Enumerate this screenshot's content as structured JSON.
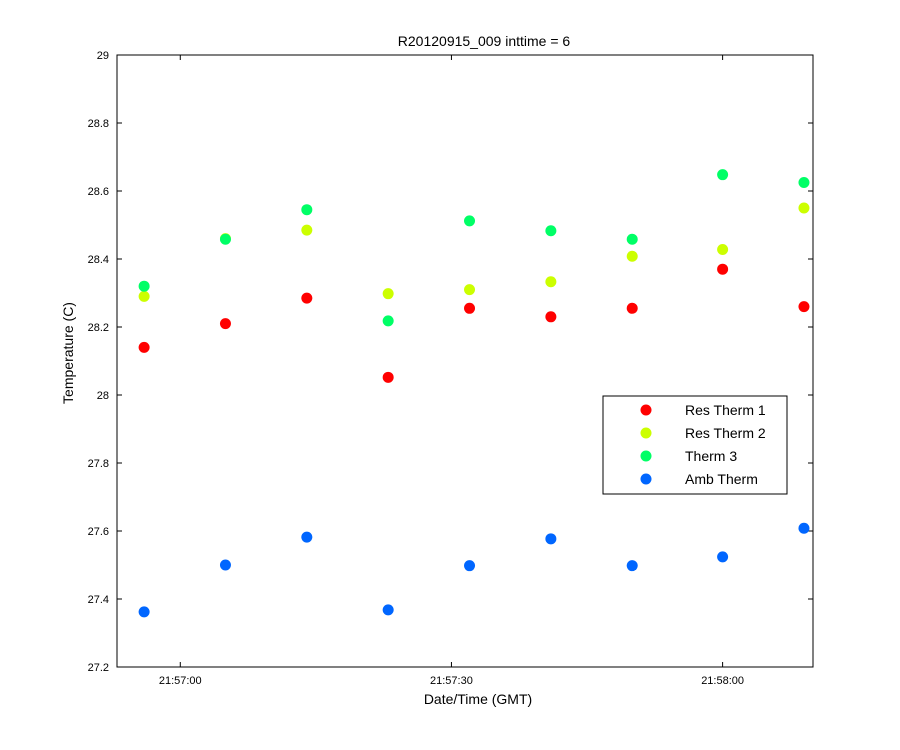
{
  "chart_data": {
    "type": "scatter",
    "title": "R20120915_009 inttime = 6",
    "xlabel": "Date/Time (GMT)",
    "ylabel": "Temperature (C)",
    "xlim": [
      "21:56:53",
      "21:58:10"
    ],
    "ylim": [
      27.2,
      29
    ],
    "x_ticks": [
      "21:57:00",
      "21:57:30",
      "21:58:00"
    ],
    "y_ticks": [
      "27.2",
      "27.4",
      "27.6",
      "27.8",
      "28",
      "28.2",
      "28.4",
      "28.6",
      "28.8",
      "29"
    ],
    "x": [
      "21:56:56",
      "21:57:05",
      "21:57:14",
      "21:57:23",
      "21:57:32",
      "21:57:41",
      "21:57:50",
      "21:58:00",
      "21:58:09"
    ],
    "series": [
      {
        "name": "Res Therm 1",
        "color": "#ff0000",
        "values": [
          28.14,
          28.21,
          28.285,
          28.052,
          28.255,
          28.23,
          28.255,
          28.37,
          28.26
        ]
      },
      {
        "name": "Res Therm 2",
        "color": "#ccff00",
        "values": [
          28.29,
          28.46,
          28.485,
          28.298,
          28.31,
          28.333,
          28.408,
          28.428,
          28.55
        ]
      },
      {
        "name": "Therm 3",
        "color": "#00ff66",
        "values": [
          28.32,
          28.458,
          28.545,
          28.218,
          28.512,
          28.483,
          28.458,
          28.648,
          28.625
        ]
      },
      {
        "name": "Amb Therm",
        "color": "#0066ff",
        "values": [
          27.362,
          27.5,
          27.582,
          27.368,
          27.498,
          27.577,
          27.498,
          27.524,
          27.608
        ]
      }
    ],
    "grid": false,
    "legend_position": "right"
  }
}
